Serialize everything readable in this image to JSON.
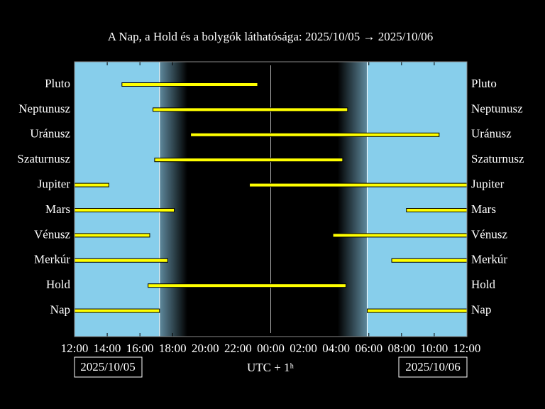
{
  "chart_data": {
    "type": "timeline",
    "title": "A Nap, a Hold és a bolygók láthatósága: 2025/10/05 → 2025/10/06",
    "xlabel": "UTC + 1ʰ",
    "start_date": "2025/10/05",
    "end_date": "2025/10/06",
    "xlim": [
      0,
      24
    ],
    "xticks": [
      {
        "value": 0,
        "label": "12:00"
      },
      {
        "value": 2,
        "label": "14:00"
      },
      {
        "value": 4,
        "label": "16:00"
      },
      {
        "value": 6,
        "label": "18:00"
      },
      {
        "value": 8,
        "label": "20:00"
      },
      {
        "value": 10,
        "label": "22:00"
      },
      {
        "value": 12,
        "label": "00:00"
      },
      {
        "value": 14,
        "label": "02:00"
      },
      {
        "value": 16,
        "label": "04:00"
      },
      {
        "value": 18,
        "label": "06:00"
      },
      {
        "value": 20,
        "label": "08:00"
      },
      {
        "value": 22,
        "label": "10:00"
      },
      {
        "value": 24,
        "label": "12:00"
      }
    ],
    "midnight": 12,
    "twilight": [
      [
        5.2,
        6.9
      ],
      [
        16.1,
        17.9
      ]
    ],
    "day_color": "#87ceeb",
    "bar_color": "#ffff00",
    "rows": [
      {
        "label": "Pluto",
        "segments": [
          [
            2.9,
            11.2
          ]
        ]
      },
      {
        "label": "Neptunusz",
        "segments": [
          [
            4.8,
            16.7
          ]
        ]
      },
      {
        "label": "Uránusz",
        "segments": [
          [
            7.1,
            22.3
          ]
        ]
      },
      {
        "label": "Szaturnusz",
        "segments": [
          [
            4.9,
            16.4
          ]
        ]
      },
      {
        "label": "Jupiter",
        "segments": [
          [
            0,
            2.1
          ],
          [
            10.7,
            24
          ]
        ]
      },
      {
        "label": "Mars",
        "segments": [
          [
            0,
            6.1
          ],
          [
            20.3,
            24
          ]
        ]
      },
      {
        "label": "Vénusz",
        "segments": [
          [
            0,
            4.6
          ],
          [
            15.8,
            24
          ]
        ]
      },
      {
        "label": "Merkúr",
        "segments": [
          [
            0,
            5.7
          ],
          [
            19.4,
            24
          ]
        ]
      },
      {
        "label": "Hold",
        "segments": [
          [
            4.5,
            16.6
          ]
        ]
      },
      {
        "label": "Nap",
        "segments": [
          [
            0,
            5.2
          ],
          [
            17.9,
            24
          ]
        ]
      }
    ]
  }
}
